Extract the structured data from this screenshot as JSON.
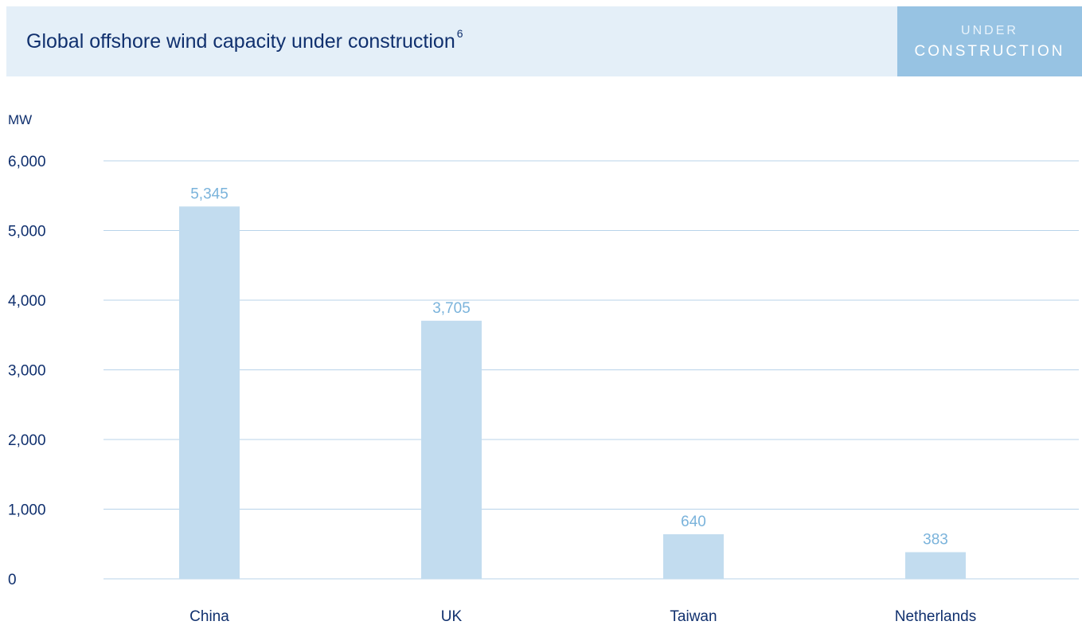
{
  "header": {
    "title": "Global offshore wind capacity under construction",
    "title_sup": "6",
    "tag_line1": "UNDER",
    "tag_line2": "CONSTRUCTION",
    "colors": {
      "header_bg": "#e4eff8",
      "tag_bg": "#97c3e3",
      "title_text": "#10306e"
    }
  },
  "chart_data": {
    "type": "bar",
    "title": "Global offshore wind capacity under construction",
    "ylabel": "MW",
    "xlabel": "",
    "categories": [
      "China",
      "UK",
      "Taiwan",
      "Netherlands"
    ],
    "values": [
      5345,
      3705,
      640,
      383
    ],
    "value_labels": [
      "5,345",
      "3,705",
      "640",
      "383"
    ],
    "ylim": [
      0,
      6000
    ],
    "yticks": [
      0,
      1000,
      2000,
      3000,
      4000,
      5000,
      6000
    ],
    "ytick_labels": [
      "0",
      "1,000",
      "2,000",
      "3,000",
      "4,000",
      "5,000",
      "6,000"
    ],
    "grid": true,
    "legend": "none",
    "colors": {
      "bar": "#c2dcef",
      "value_label": "#7ab3db",
      "axis_text": "#10306e",
      "grid": "#b8d3ea"
    }
  }
}
